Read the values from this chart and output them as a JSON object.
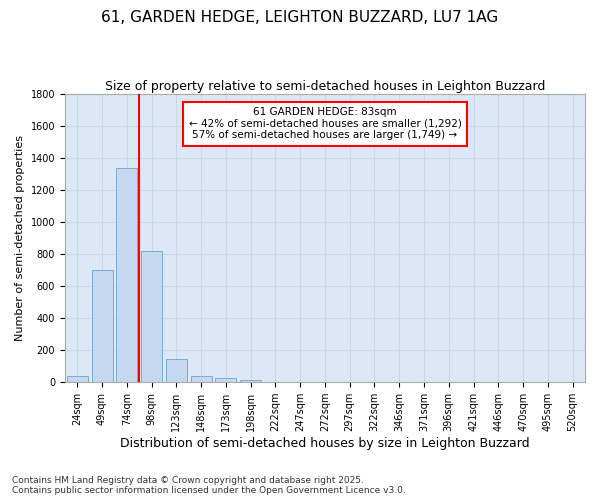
{
  "title": "61, GARDEN HEDGE, LEIGHTON BUZZARD, LU7 1AG",
  "subtitle": "Size of property relative to semi-detached houses in Leighton Buzzard",
  "xlabel": "Distribution of semi-detached houses by size in Leighton Buzzard",
  "ylabel": "Number of semi-detached properties",
  "categories": [
    "24sqm",
    "49sqm",
    "74sqm",
    "98sqm",
    "123sqm",
    "148sqm",
    "173sqm",
    "198sqm",
    "222sqm",
    "247sqm",
    "272sqm",
    "297sqm",
    "322sqm",
    "346sqm",
    "371sqm",
    "396sqm",
    "421sqm",
    "446sqm",
    "470sqm",
    "495sqm",
    "520sqm"
  ],
  "values": [
    40,
    700,
    1340,
    820,
    145,
    40,
    25,
    15,
    0,
    0,
    0,
    0,
    0,
    0,
    0,
    0,
    0,
    0,
    0,
    0,
    0
  ],
  "bar_color": "#c5d8f0",
  "bar_edge_color": "#7aadd4",
  "vline_color": "#ff0000",
  "vline_index": 2.5,
  "annotation_box_text": "61 GARDEN HEDGE: 83sqm\n← 42% of semi-detached houses are smaller (1,292)\n57% of semi-detached houses are larger (1,749) →",
  "annotation_box_color": "#ff0000",
  "annotation_fill": "#ffffff",
  "ylim": [
    0,
    1800
  ],
  "yticks": [
    0,
    200,
    400,
    600,
    800,
    1000,
    1200,
    1400,
    1600,
    1800
  ],
  "grid_color": "#c8d8e8",
  "background_color": "#dce8f5",
  "footer": "Contains HM Land Registry data © Crown copyright and database right 2025.\nContains public sector information licensed under the Open Government Licence v3.0.",
  "title_fontsize": 11,
  "subtitle_fontsize": 9,
  "xlabel_fontsize": 9,
  "ylabel_fontsize": 8,
  "tick_fontsize": 7,
  "annotation_fontsize": 7.5,
  "footer_fontsize": 6.5
}
